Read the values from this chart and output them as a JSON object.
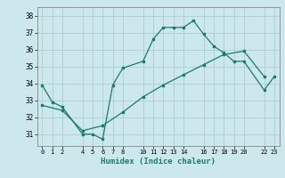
{
  "xlabel": "Humidex (Indice chaleur)",
  "ylabel": "",
  "bg_color": "#cde8ed",
  "line_color": "#1a7a6e",
  "grid_color": "#aacdd4",
  "line1_x": [
    0,
    1,
    2,
    4,
    5,
    6,
    7,
    8,
    10,
    11,
    12,
    13,
    14,
    15,
    16,
    17,
    18,
    19,
    20,
    22,
    23
  ],
  "line1_y": [
    33.9,
    32.9,
    32.6,
    31.0,
    31.0,
    30.7,
    33.9,
    34.9,
    35.3,
    36.6,
    37.3,
    37.3,
    37.3,
    37.7,
    36.9,
    36.2,
    35.8,
    35.3,
    35.3,
    33.6,
    34.4
  ],
  "line2_x": [
    0,
    2,
    4,
    6,
    8,
    10,
    12,
    14,
    16,
    18,
    20,
    22
  ],
  "line2_y": [
    32.7,
    32.4,
    31.2,
    31.5,
    32.3,
    33.2,
    33.9,
    34.5,
    35.1,
    35.7,
    35.9,
    34.4
  ],
  "xticks": [
    0,
    1,
    2,
    4,
    5,
    6,
    7,
    8,
    10,
    11,
    12,
    13,
    14,
    16,
    17,
    18,
    19,
    20,
    22,
    23
  ],
  "yticks": [
    31,
    32,
    33,
    34,
    35,
    36,
    37,
    38
  ],
  "ylim": [
    30.3,
    38.5
  ],
  "xlim": [
    -0.5,
    23.5
  ]
}
